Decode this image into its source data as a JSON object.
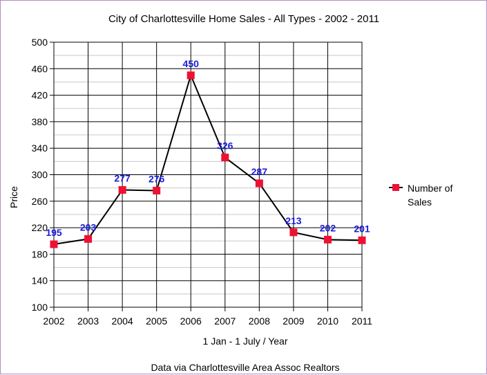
{
  "chart_data": {
    "type": "line",
    "title": "City of Charlottesville Home Sales - All Types - 2002 - 2011",
    "xlabel": "1 Jan - 1 July  /  Year",
    "ylabel": "Price",
    "footer": "Data via Charlottesville Area Assoc Realtors",
    "categories": [
      "2002",
      "2003",
      "2004",
      "2005",
      "2006",
      "2007",
      "2008",
      "2009",
      "2010",
      "2011"
    ],
    "series": [
      {
        "name": "Number of Sales",
        "legend_lines": [
          "Number of",
          "Sales"
        ],
        "values": [
          195,
          203,
          277,
          276,
          450,
          326,
          287,
          213,
          202,
          201
        ],
        "data_labels": [
          "195",
          "203",
          "277",
          "276",
          "450",
          "326",
          "287",
          "213",
          "202",
          "201"
        ],
        "color": "#ee1133"
      }
    ],
    "ylim": [
      100,
      500
    ],
    "yticks": [
      100,
      140,
      180,
      220,
      260,
      300,
      340,
      380,
      420,
      460,
      500
    ],
    "minor_step": 20,
    "grid": true,
    "legend_position": "right",
    "line_color": "#000000",
    "label_color": "#1a1adb"
  }
}
